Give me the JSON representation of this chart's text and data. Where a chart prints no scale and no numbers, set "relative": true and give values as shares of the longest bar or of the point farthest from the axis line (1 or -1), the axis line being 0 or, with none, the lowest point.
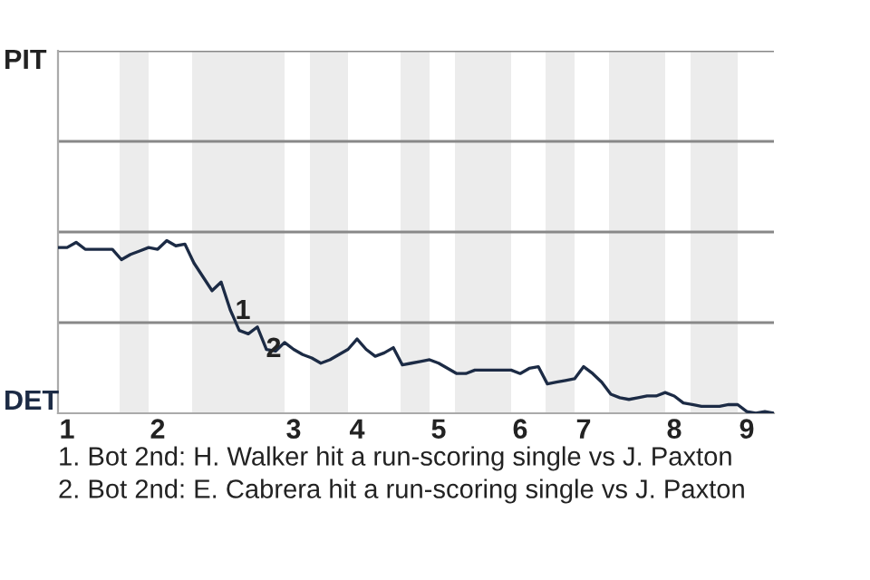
{
  "chart_data": {
    "type": "line",
    "relative": true,
    "categories": [
      null,
      "1",
      null,
      null,
      null,
      null,
      null,
      null,
      null,
      null,
      null,
      "2",
      null,
      null,
      null,
      null,
      null,
      null,
      null,
      null,
      null,
      null,
      null,
      null,
      null,
      null,
      "3",
      null,
      null,
      null,
      null,
      null,
      null,
      "4",
      null,
      null,
      null,
      null,
      null,
      null,
      null,
      null,
      "5",
      null,
      null,
      null,
      null,
      null,
      null,
      null,
      null,
      "6",
      null,
      null,
      null,
      null,
      null,
      null,
      "7",
      null,
      null,
      null,
      null,
      null,
      null,
      null,
      null,
      null,
      "8",
      null,
      null,
      null,
      null,
      null,
      null,
      null,
      "9",
      null,
      null,
      null
    ],
    "series": [
      {
        "color": "#1c2b45",
        "values": [
          0.96,
          0.96,
          0.99,
          0.95,
          0.95,
          0.95,
          0.95,
          0.89,
          0.92,
          0.94,
          0.96,
          0.95,
          1,
          0.97,
          0.98,
          0.87,
          0.79,
          0.71,
          0.76,
          0.6,
          0.48,
          0.46,
          0.5,
          0.37,
          0.36,
          0.41,
          0.37,
          0.34,
          0.32,
          0.29,
          0.31,
          0.34,
          0.37,
          0.43,
          0.37,
          0.33,
          0.35,
          0.38,
          0.28,
          0.29,
          0.3,
          0.31,
          0.29,
          0.26,
          0.23,
          0.23,
          0.25,
          0.25,
          0.25,
          0.25,
          0.25,
          0.23,
          0.26,
          0.27,
          0.17,
          0.18,
          0.19,
          0.2,
          0.27,
          0.23,
          0.18,
          0.11,
          0.09,
          0.08,
          0.09,
          0.1,
          0.1,
          0.12,
          0.1,
          0.06,
          0.05,
          0.04,
          0.04,
          0.04,
          0.05,
          0.05,
          0.01,
          0,
          0.01,
          0
        ]
      }
    ],
    "ref_lines": [
      {
        "axis": "y",
        "value": 0.525,
        "color": "#888888"
      },
      {
        "axis": "y",
        "value": 1.05,
        "color": "#888888"
      },
      {
        "axis": "y",
        "value": 1.575,
        "color": "#888888"
      }
    ],
    "marker": "none",
    "line_style": "solid",
    "annotations": [
      "PIT",
      "DET",
      "1",
      "2",
      "1. Bot 2nd: H. Walker hit a run-scoring single vs J. Paxton",
      "2. Bot 2nd: E. Cabrera hit a run-scoring single vs J. Paxton"
    ]
  }
}
